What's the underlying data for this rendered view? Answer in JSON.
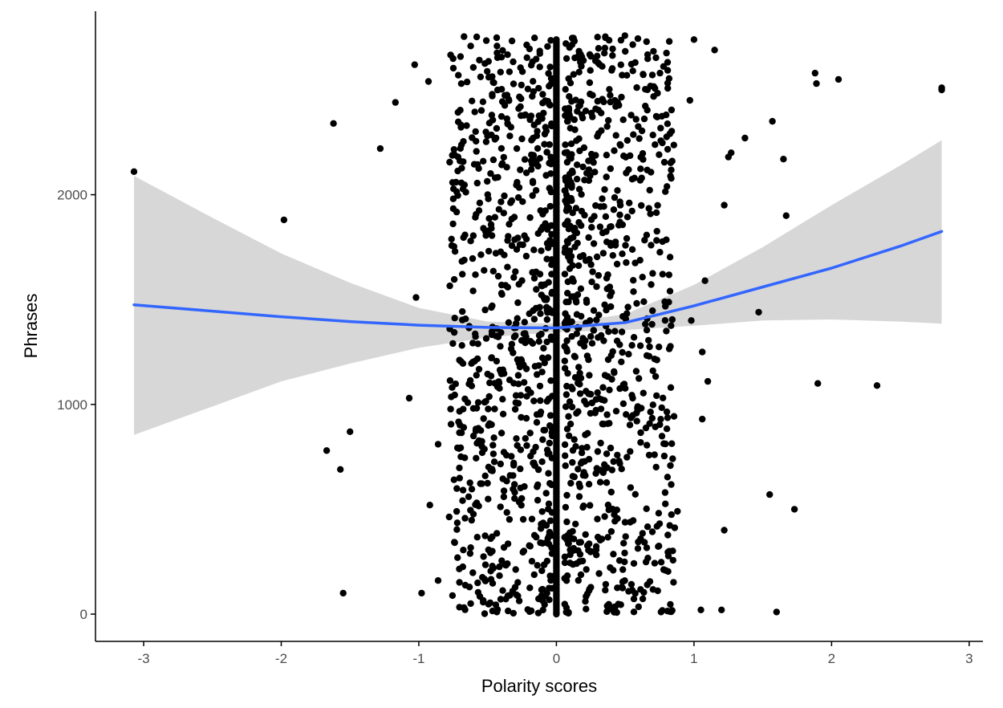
{
  "chart_data": {
    "type": "scatter",
    "xlabel": "Polarity scores",
    "ylabel": "Phrases",
    "xlim": [
      -3.35,
      3.1
    ],
    "ylim": [
      -130,
      2875
    ],
    "x_ticks": [
      -3,
      -2,
      -1,
      0,
      1,
      2,
      3
    ],
    "y_ticks": [
      0,
      1000,
      2000
    ],
    "x_tick_labels": [
      "-3",
      "-2",
      "-1",
      "0",
      "1",
      "2",
      "3"
    ],
    "y_tick_labels": [
      "0",
      "1000",
      "2000"
    ],
    "grid": false,
    "colors": {
      "points": "#000000",
      "smooth_line": "#3366ff",
      "ribbon": "#d3d3d3",
      "axis": "#000000"
    },
    "zero_polarity_count": 2750,
    "outliers": [
      {
        "x": -3.07,
        "y": 2110
      },
      {
        "x": -1.98,
        "y": 1880
      },
      {
        "x": -1.62,
        "y": 2340
      },
      {
        "x": -1.17,
        "y": 2440
      },
      {
        "x": -1.28,
        "y": 2220
      },
      {
        "x": -1.03,
        "y": 2620
      },
      {
        "x": -0.93,
        "y": 2540
      },
      {
        "x": -1.02,
        "y": 1510
      },
      {
        "x": -1.07,
        "y": 1030
      },
      {
        "x": -1.5,
        "y": 870
      },
      {
        "x": -1.67,
        "y": 780
      },
      {
        "x": -1.57,
        "y": 690
      },
      {
        "x": -1.55,
        "y": 100
      },
      {
        "x": -0.98,
        "y": 100
      },
      {
        "x": -0.92,
        "y": 520
      },
      {
        "x": -0.86,
        "y": 810
      },
      {
        "x": -0.86,
        "y": 160
      },
      {
        "x": 1.37,
        "y": 2270
      },
      {
        "x": 1.57,
        "y": 2350
      },
      {
        "x": 1.65,
        "y": 2170
      },
      {
        "x": 1.88,
        "y": 2580
      },
      {
        "x": 1.89,
        "y": 2530
      },
      {
        "x": 2.05,
        "y": 2550
      },
      {
        "x": 2.8,
        "y": 2510
      },
      {
        "x": 2.8,
        "y": 2500
      },
      {
        "x": 1.67,
        "y": 1900
      },
      {
        "x": 1.47,
        "y": 1440
      },
      {
        "x": 1.9,
        "y": 1100
      },
      {
        "x": 2.33,
        "y": 1090
      },
      {
        "x": 1.55,
        "y": 570
      },
      {
        "x": 1.73,
        "y": 500
      },
      {
        "x": 1.6,
        "y": 10
      },
      {
        "x": 1.05,
        "y": 20
      },
      {
        "x": 1.2,
        "y": 20
      },
      {
        "x": 1.27,
        "y": 2200
      },
      {
        "x": 1.25,
        "y": 2180
      },
      {
        "x": 1.22,
        "y": 400
      },
      {
        "x": 1.22,
        "y": 1950
      },
      {
        "x": 1.08,
        "y": 1590
      },
      {
        "x": 1.06,
        "y": 930
      },
      {
        "x": 0.97,
        "y": 2450
      },
      {
        "x": 1.0,
        "y": 2740
      },
      {
        "x": 1.15,
        "y": 2690
      },
      {
        "x": 0.98,
        "y": 1400
      },
      {
        "x": 1.06,
        "y": 1250
      },
      {
        "x": 1.1,
        "y": 1110
      },
      {
        "x": 0.76,
        "y": 10
      },
      {
        "x": 0.88,
        "y": 490
      }
    ],
    "smooth_line": {
      "x": [
        -3.07,
        -2.5,
        -2.0,
        -1.5,
        -1.0,
        -0.5,
        0.0,
        0.5,
        1.0,
        1.5,
        2.0,
        2.5,
        2.8
      ],
      "y": [
        1475,
        1445,
        1418,
        1395,
        1378,
        1367,
        1365,
        1390,
        1470,
        1560,
        1650,
        1755,
        1825
      ]
    },
    "ribbon": {
      "x": [
        -3.07,
        -2.5,
        -2.0,
        -1.5,
        -1.0,
        -0.5,
        0.0,
        0.5,
        1.0,
        1.5,
        2.0,
        2.5,
        2.8
      ],
      "upper": [
        2090,
        1890,
        1720,
        1580,
        1460,
        1395,
        1385,
        1430,
        1570,
        1750,
        1950,
        2140,
        2260
      ],
      "lower": [
        855,
        990,
        1110,
        1195,
        1270,
        1320,
        1345,
        1355,
        1375,
        1400,
        1405,
        1395,
        1385
      ]
    }
  }
}
